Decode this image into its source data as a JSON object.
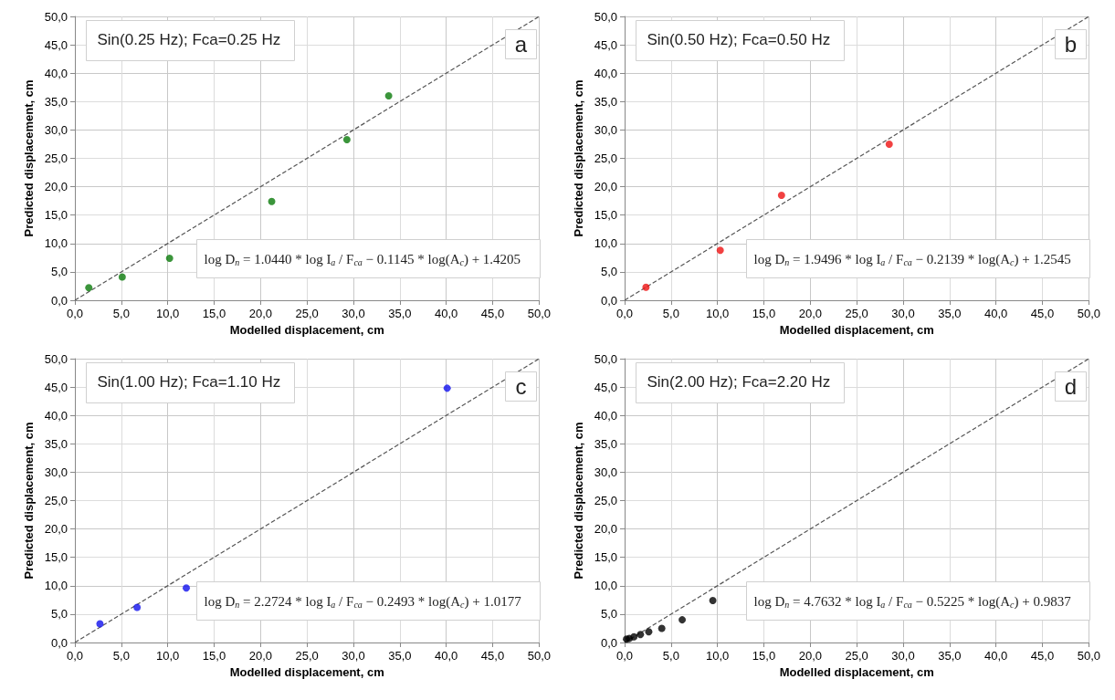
{
  "chart_data": [
    {
      "type": "scatter",
      "xlabel": "Modelled displacement, cm",
      "ylabel": "Predicted displacement, cm",
      "xlim": [
        0,
        50
      ],
      "ylim": [
        0,
        50
      ],
      "xticks": [
        {
          "value": 0,
          "label": "0,0"
        },
        {
          "value": 5,
          "label": "5,0"
        },
        {
          "value": 10,
          "label": "10,0"
        },
        {
          "value": 15,
          "label": "15,0"
        },
        {
          "value": 20,
          "label": "20,0"
        },
        {
          "value": 25,
          "label": "25,0"
        },
        {
          "value": 30,
          "label": "30,0"
        },
        {
          "value": 35,
          "label": "35,0"
        },
        {
          "value": 40,
          "label": "40,0"
        },
        {
          "value": 45,
          "label": "45,0"
        },
        {
          "value": 50,
          "label": "50,0"
        }
      ],
      "yticks": [
        {
          "value": 0,
          "label": "0,0"
        },
        {
          "value": 5,
          "label": "5,0"
        },
        {
          "value": 10,
          "label": "10,0"
        },
        {
          "value": 15,
          "label": "15,0"
        },
        {
          "value": 20,
          "label": "20,0"
        },
        {
          "value": 25,
          "label": "25,0"
        },
        {
          "value": 30,
          "label": "30,0"
        },
        {
          "value": 35,
          "label": "35,0"
        },
        {
          "value": 40,
          "label": "40,0"
        },
        {
          "value": 45,
          "label": "45,0"
        },
        {
          "value": 50,
          "label": "50,0"
        }
      ],
      "grid": true,
      "marker": "circle",
      "series": [
        {
          "color": "#0a7a0a",
          "x": [
            1.5,
            5.1,
            10.2,
            21.2,
            29.3,
            33.8
          ],
          "values": [
            2.2,
            4.1,
            7.4,
            17.4,
            28.3,
            36.0
          ]
        },
        {
          "type": "line",
          "color": "#555555",
          "line_style": "dashed",
          "marker": "none",
          "x": [
            0,
            50
          ],
          "values": [
            0,
            50
          ]
        }
      ],
      "annotations": [
        "Sin(0.25 Hz); Fca=0.25 Hz",
        "log D$_{n}$ = 1.0440 * log I$_{a}$ / F$_{ca}$ − 0.1145 * log(A$_{c}$) + 1.4205",
        "a"
      ]
    },
    {
      "type": "scatter",
      "xlabel": "Modelled displacement, cm",
      "ylabel": "Predicted displacement, cm",
      "xlim": [
        0,
        50
      ],
      "ylim": [
        0,
        50
      ],
      "xticks": [
        {
          "value": 0,
          "label": "0,0"
        },
        {
          "value": 5,
          "label": "5,0"
        },
        {
          "value": 10,
          "label": "10,0"
        },
        {
          "value": 15,
          "label": "15,0"
        },
        {
          "value": 20,
          "label": "20,0"
        },
        {
          "value": 25,
          "label": "25,0"
        },
        {
          "value": 30,
          "label": "30,0"
        },
        {
          "value": 35,
          "label": "35,0"
        },
        {
          "value": 40,
          "label": "40,0"
        },
        {
          "value": 45,
          "label": "45,0"
        },
        {
          "value": 50,
          "label": "50,0"
        }
      ],
      "yticks": [
        {
          "value": 0,
          "label": "0,0"
        },
        {
          "value": 5,
          "label": "5,0"
        },
        {
          "value": 10,
          "label": "10,0"
        },
        {
          "value": 15,
          "label": "15,0"
        },
        {
          "value": 20,
          "label": "20,0"
        },
        {
          "value": 25,
          "label": "25,0"
        },
        {
          "value": 30,
          "label": "30,0"
        },
        {
          "value": 35,
          "label": "35,0"
        },
        {
          "value": 40,
          "label": "40,0"
        },
        {
          "value": 45,
          "label": "45,0"
        },
        {
          "value": 50,
          "label": "50,0"
        }
      ],
      "grid": true,
      "marker": "circle",
      "series": [
        {
          "color": "#ee1111",
          "x": [
            2.3,
            10.3,
            16.9,
            28.5
          ],
          "values": [
            2.3,
            8.8,
            18.5,
            27.5
          ]
        },
        {
          "type": "line",
          "color": "#555555",
          "line_style": "dashed",
          "marker": "none",
          "x": [
            0,
            50
          ],
          "values": [
            0,
            50
          ]
        }
      ],
      "annotations": [
        "Sin(0.50 Hz); Fca=0.50 Hz",
        "log D$_{n}$ = 1.9496 * log I$_{a}$ / F$_{ca}$ − 0.2139 * log(A$_{c}$) + 1.2545",
        "b"
      ]
    },
    {
      "type": "scatter",
      "xlabel": "Modelled displacement, cm",
      "ylabel": "Predicted displacement, cm",
      "xlim": [
        0,
        50
      ],
      "ylim": [
        0,
        50
      ],
      "xticks": [
        {
          "value": 0,
          "label": "0,0"
        },
        {
          "value": 5,
          "label": "5,0"
        },
        {
          "value": 10,
          "label": "10,0"
        },
        {
          "value": 15,
          "label": "15,0"
        },
        {
          "value": 20,
          "label": "20,0"
        },
        {
          "value": 25,
          "label": "25,0"
        },
        {
          "value": 30,
          "label": "30,0"
        },
        {
          "value": 35,
          "label": "35,0"
        },
        {
          "value": 40,
          "label": "40,0"
        },
        {
          "value": 45,
          "label": "45,0"
        },
        {
          "value": 50,
          "label": "50,0"
        }
      ],
      "yticks": [
        {
          "value": 0,
          "label": "0,0"
        },
        {
          "value": 5,
          "label": "5,0"
        },
        {
          "value": 10,
          "label": "10,0"
        },
        {
          "value": 15,
          "label": "15,0"
        },
        {
          "value": 20,
          "label": "20,0"
        },
        {
          "value": 25,
          "label": "25,0"
        },
        {
          "value": 30,
          "label": "30,0"
        },
        {
          "value": 35,
          "label": "35,0"
        },
        {
          "value": 40,
          "label": "40,0"
        },
        {
          "value": 45,
          "label": "45,0"
        },
        {
          "value": 50,
          "label": "50,0"
        }
      ],
      "grid": true,
      "marker": "circle",
      "series": [
        {
          "color": "#1010ee",
          "x": [
            2.7,
            6.7,
            12.0,
            40.1
          ],
          "values": [
            3.3,
            6.2,
            9.6,
            44.8
          ]
        },
        {
          "type": "line",
          "color": "#555555",
          "line_style": "dashed",
          "marker": "none",
          "x": [
            0,
            50
          ],
          "values": [
            0,
            50
          ]
        }
      ],
      "annotations": [
        "Sin(1.00 Hz); Fca=1.10 Hz",
        "log D$_{n}$ = 2.2724 * log I$_{a}$ / F$_{ca}$ − 0.2493 * log(A$_{c}$) + 1.0177",
        "c"
      ]
    },
    {
      "type": "scatter",
      "xlabel": "Modelled displacement, cm",
      "ylabel": "Predicted displacement, cm",
      "xlim": [
        0,
        50
      ],
      "ylim": [
        0,
        50
      ],
      "xticks": [
        {
          "value": 0,
          "label": "0,0"
        },
        {
          "value": 5,
          "label": "5,0"
        },
        {
          "value": 10,
          "label": "10,0"
        },
        {
          "value": 15,
          "label": "15,0"
        },
        {
          "value": 20,
          "label": "20,0"
        },
        {
          "value": 25,
          "label": "25,0"
        },
        {
          "value": 30,
          "label": "30,0"
        },
        {
          "value": 35,
          "label": "35,0"
        },
        {
          "value": 40,
          "label": "40,0"
        },
        {
          "value": 45,
          "label": "45,0"
        },
        {
          "value": 50,
          "label": "50,0"
        }
      ],
      "yticks": [
        {
          "value": 0,
          "label": "0,0"
        },
        {
          "value": 5,
          "label": "5,0"
        },
        {
          "value": 10,
          "label": "10,0"
        },
        {
          "value": 15,
          "label": "15,0"
        },
        {
          "value": 20,
          "label": "20,0"
        },
        {
          "value": 25,
          "label": "25,0"
        },
        {
          "value": 30,
          "label": "30,0"
        },
        {
          "value": 35,
          "label": "35,0"
        },
        {
          "value": 40,
          "label": "40,0"
        },
        {
          "value": 45,
          "label": "45,0"
        },
        {
          "value": 50,
          "label": "50,0"
        }
      ],
      "grid": true,
      "marker": "circle",
      "series": [
        {
          "color": "#000000",
          "x": [
            0.2,
            0.5,
            1.0,
            1.7,
            2.6,
            4.0,
            6.2,
            9.5
          ],
          "values": [
            0.6,
            0.7,
            1.0,
            1.4,
            1.9,
            2.5,
            4.0,
            7.4
          ]
        },
        {
          "type": "line",
          "color": "#555555",
          "line_style": "dashed",
          "marker": "none",
          "x": [
            0,
            50
          ],
          "values": [
            0,
            50
          ]
        }
      ],
      "annotations": [
        "Sin(2.00 Hz); Fca=2.20 Hz",
        "log D$_{n}$ = 4.7632 * log I$_{a}$ / F$_{ca}$ − 0.5225 * log(A$_{c}$) + 0.9837",
        "d"
      ]
    }
  ]
}
